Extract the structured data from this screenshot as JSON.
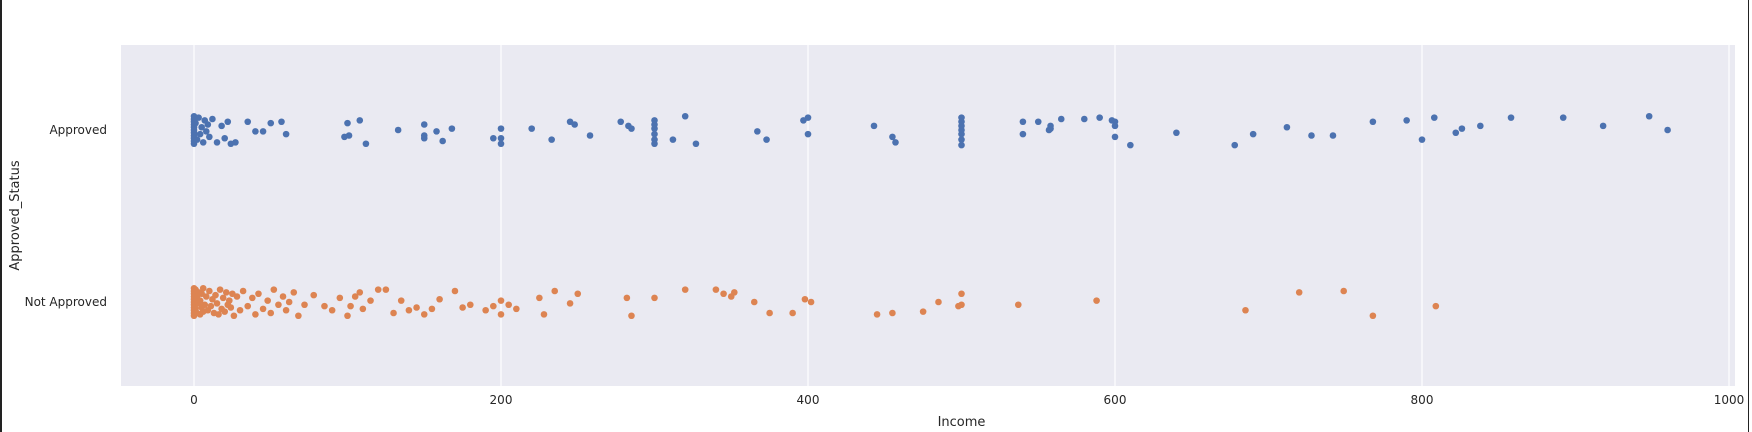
{
  "chart_data": {
    "type": "scatter",
    "style": "strip-plot",
    "xlabel": "Income",
    "ylabel": "Approved_Status",
    "xlim": [
      -50,
      1005
    ],
    "x_ticks": [
      0,
      200,
      400,
      600,
      800,
      1000
    ],
    "categories": [
      "Approved",
      "Not Approved"
    ],
    "grid": true,
    "colors": {
      "background": "#eaeaf2",
      "grid": "#ffffff",
      "Approved": "#4c72b0",
      "Not Approved": "#dd8452"
    },
    "series": [
      {
        "category": "Approved",
        "points": [
          [
            0,
            -0.1
          ],
          [
            0,
            -0.08
          ],
          [
            0,
            -0.06
          ],
          [
            0,
            -0.04
          ],
          [
            0,
            -0.02
          ],
          [
            0,
            0.0
          ],
          [
            0,
            0.02
          ],
          [
            0,
            0.04
          ],
          [
            0,
            0.06
          ],
          [
            0,
            0.08
          ],
          [
            0,
            0.1
          ],
          [
            1,
            -0.05
          ],
          [
            2,
            0.07
          ],
          [
            3,
            -0.09
          ],
          [
            4,
            0.03
          ],
          [
            5,
            -0.02
          ],
          [
            6,
            0.09
          ],
          [
            7,
            -0.07
          ],
          [
            8,
            0.01
          ],
          [
            9,
            -0.04
          ],
          [
            10,
            0.05
          ],
          [
            12,
            -0.08
          ],
          [
            15,
            0.09
          ],
          [
            18,
            -0.03
          ],
          [
            20,
            0.06
          ],
          [
            22,
            -0.06
          ],
          [
            24,
            0.1
          ],
          [
            27,
            0.09
          ],
          [
            35,
            -0.06
          ],
          [
            40,
            0.01
          ],
          [
            45,
            0.01
          ],
          [
            50,
            -0.05
          ],
          [
            57,
            -0.06
          ],
          [
            60,
            0.03
          ],
          [
            98,
            0.05
          ],
          [
            100,
            -0.05
          ],
          [
            101,
            0.04
          ],
          [
            108,
            -0.07
          ],
          [
            112,
            0.1
          ],
          [
            133,
            0.0
          ],
          [
            150,
            0.04
          ],
          [
            150,
            -0.04
          ],
          [
            150,
            0.06
          ],
          [
            158,
            0.01
          ],
          [
            162,
            0.08
          ],
          [
            168,
            -0.01
          ],
          [
            195,
            0.06
          ],
          [
            200,
            0.1
          ],
          [
            200,
            0.06
          ],
          [
            200,
            -0.01
          ],
          [
            220,
            -0.01
          ],
          [
            233,
            0.07
          ],
          [
            245,
            -0.06
          ],
          [
            248,
            -0.04
          ],
          [
            258,
            0.04
          ],
          [
            278,
            -0.06
          ],
          [
            283,
            -0.03
          ],
          [
            285,
            -0.01
          ],
          [
            300,
            0.1
          ],
          [
            300,
            0.07
          ],
          [
            300,
            0.03
          ],
          [
            300,
            -0.01
          ],
          [
            300,
            -0.04
          ],
          [
            300,
            -0.07
          ],
          [
            312,
            0.07
          ],
          [
            320,
            -0.1
          ],
          [
            327,
            0.1
          ],
          [
            367,
            0.01
          ],
          [
            373,
            0.07
          ],
          [
            397,
            -0.07
          ],
          [
            400,
            0.03
          ],
          [
            400,
            -0.09
          ],
          [
            443,
            -0.03
          ],
          [
            455,
            0.05
          ],
          [
            457,
            0.09
          ],
          [
            500,
            0.11
          ],
          [
            500,
            0.07
          ],
          [
            500,
            0.03
          ],
          [
            500,
            0.0
          ],
          [
            500,
            -0.03
          ],
          [
            500,
            -0.06
          ],
          [
            500,
            -0.09
          ],
          [
            540,
            0.03
          ],
          [
            540,
            -0.06
          ],
          [
            550,
            -0.06
          ],
          [
            557,
            0.0
          ],
          [
            558,
            -0.01
          ],
          [
            558,
            -0.03
          ],
          [
            565,
            -0.08
          ],
          [
            580,
            -0.08
          ],
          [
            590,
            -0.09
          ],
          [
            598,
            -0.07
          ],
          [
            600,
            -0.06
          ],
          [
            600,
            -0.03
          ],
          [
            600,
            0.05
          ],
          [
            610,
            0.11
          ],
          [
            640,
            0.02
          ],
          [
            678,
            0.11
          ],
          [
            690,
            0.03
          ],
          [
            712,
            -0.02
          ],
          [
            728,
            0.04
          ],
          [
            742,
            0.04
          ],
          [
            768,
            -0.06
          ],
          [
            790,
            -0.07
          ],
          [
            800,
            0.07
          ],
          [
            808,
            -0.09
          ],
          [
            822,
            0.02
          ],
          [
            826,
            -0.01
          ],
          [
            838,
            -0.03
          ],
          [
            858,
            -0.09
          ],
          [
            892,
            -0.09
          ],
          [
            918,
            -0.03
          ],
          [
            948,
            -0.1
          ],
          [
            960,
            0.0
          ]
        ]
      },
      {
        "category": "Not Approved",
        "points": [
          [
            0,
            -0.1
          ],
          [
            0,
            -0.08
          ],
          [
            0,
            -0.06
          ],
          [
            0,
            -0.04
          ],
          [
            0,
            -0.02
          ],
          [
            0,
            0.0
          ],
          [
            0,
            0.02
          ],
          [
            0,
            0.04
          ],
          [
            0,
            0.06
          ],
          [
            0,
            0.08
          ],
          [
            0,
            0.1
          ],
          [
            1,
            -0.09
          ],
          [
            1,
            0.05
          ],
          [
            2,
            -0.03
          ],
          [
            2,
            0.08
          ],
          [
            3,
            0.01
          ],
          [
            3,
            -0.07
          ],
          [
            4,
            0.09
          ],
          [
            4,
            -0.01
          ],
          [
            5,
            0.04
          ],
          [
            5,
            -0.06
          ],
          [
            6,
            0.07
          ],
          [
            6,
            -0.1
          ],
          [
            7,
            0.02
          ],
          [
            8,
            -0.04
          ],
          [
            9,
            0.06
          ],
          [
            10,
            -0.08
          ],
          [
            11,
            0.03
          ],
          [
            12,
            -0.02
          ],
          [
            13,
            0.08
          ],
          [
            14,
            -0.05
          ],
          [
            15,
            0.01
          ],
          [
            16,
            0.09
          ],
          [
            17,
            -0.09
          ],
          [
            18,
            0.05
          ],
          [
            19,
            -0.03
          ],
          [
            20,
            0.07
          ],
          [
            21,
            -0.07
          ],
          [
            22,
            0.02
          ],
          [
            23,
            -0.01
          ],
          [
            24,
            0.04
          ],
          [
            25,
            -0.06
          ],
          [
            26,
            0.1
          ],
          [
            28,
            -0.04
          ],
          [
            30,
            0.06
          ],
          [
            32,
            -0.08
          ],
          [
            35,
            0.03
          ],
          [
            38,
            -0.03
          ],
          [
            40,
            0.09
          ],
          [
            42,
            -0.06
          ],
          [
            45,
            0.05
          ],
          [
            48,
            -0.01
          ],
          [
            50,
            0.08
          ],
          [
            52,
            -0.09
          ],
          [
            55,
            0.02
          ],
          [
            58,
            -0.04
          ],
          [
            60,
            0.06
          ],
          [
            62,
            0.0
          ],
          [
            65,
            -0.07
          ],
          [
            68,
            0.1
          ],
          [
            72,
            0.02
          ],
          [
            78,
            -0.05
          ],
          [
            85,
            0.03
          ],
          [
            90,
            0.06
          ],
          [
            95,
            -0.03
          ],
          [
            100,
            0.1
          ],
          [
            102,
            0.03
          ],
          [
            105,
            -0.04
          ],
          [
            108,
            -0.07
          ],
          [
            110,
            0.05
          ],
          [
            115,
            -0.01
          ],
          [
            120,
            -0.09
          ],
          [
            125,
            -0.09
          ],
          [
            130,
            0.08
          ],
          [
            135,
            -0.01
          ],
          [
            140,
            0.06
          ],
          [
            145,
            0.04
          ],
          [
            150,
            0.09
          ],
          [
            155,
            0.05
          ],
          [
            160,
            -0.02
          ],
          [
            170,
            -0.08
          ],
          [
            175,
            0.04
          ],
          [
            180,
            0.02
          ],
          [
            190,
            0.06
          ],
          [
            195,
            0.03
          ],
          [
            200,
            0.09
          ],
          [
            200,
            -0.01
          ],
          [
            205,
            0.02
          ],
          [
            210,
            0.05
          ],
          [
            225,
            -0.03
          ],
          [
            228,
            0.09
          ],
          [
            235,
            -0.08
          ],
          [
            245,
            0.01
          ],
          [
            250,
            -0.06
          ],
          [
            282,
            -0.03
          ],
          [
            285,
            0.1
          ],
          [
            300,
            -0.03
          ],
          [
            320,
            -0.09
          ],
          [
            340,
            -0.09
          ],
          [
            345,
            -0.06
          ],
          [
            350,
            -0.04
          ],
          [
            352,
            -0.07
          ],
          [
            365,
            0.0
          ],
          [
            375,
            0.08
          ],
          [
            390,
            0.08
          ],
          [
            398,
            -0.02
          ],
          [
            402,
            0.0
          ],
          [
            445,
            0.09
          ],
          [
            455,
            0.08
          ],
          [
            475,
            0.07
          ],
          [
            485,
            0.0
          ],
          [
            498,
            0.03
          ],
          [
            500,
            0.02
          ],
          [
            500,
            -0.06
          ],
          [
            537,
            0.02
          ],
          [
            588,
            -0.01
          ],
          [
            685,
            0.06
          ],
          [
            720,
            -0.07
          ],
          [
            749,
            -0.08
          ],
          [
            768,
            0.1
          ],
          [
            809,
            0.03
          ]
        ]
      }
    ]
  }
}
